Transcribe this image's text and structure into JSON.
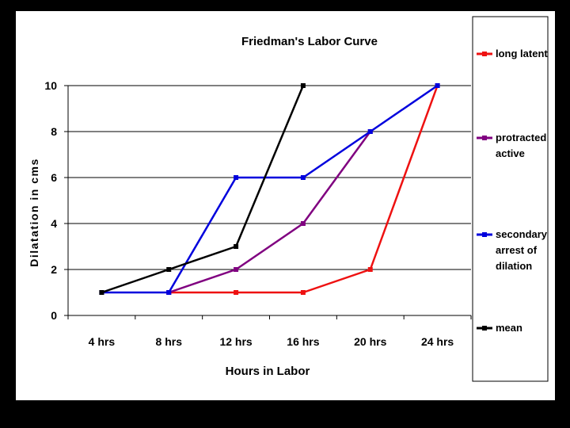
{
  "chart_data": {
    "type": "line",
    "title": "Friedman's Labor Curve",
    "xlabel": "Hours in Labor",
    "ylabel": "Dilatation in cms",
    "categories": [
      "4 hrs",
      "8 hrs",
      "12 hrs",
      "16 hrs",
      "20 hrs",
      "24 hrs"
    ],
    "ylim": [
      0,
      10
    ],
    "yticks": [
      "0",
      "2",
      "4",
      "6",
      "8",
      "10"
    ],
    "grid": true,
    "legend_position": "right",
    "series": [
      {
        "name": "long latent",
        "color": "#ee1111",
        "values": [
          null,
          1,
          1,
          1,
          2,
          10
        ]
      },
      {
        "name": "protracted active",
        "color": "#800080",
        "values": [
          null,
          1,
          2,
          4,
          8,
          null
        ]
      },
      {
        "name": "secondary arrest of dilation",
        "color": "#0000dd",
        "values": [
          1,
          1,
          6,
          6,
          8,
          10
        ]
      },
      {
        "name": "mean",
        "color": "#000000",
        "values": [
          1,
          2,
          3,
          10,
          null,
          null
        ]
      }
    ]
  }
}
